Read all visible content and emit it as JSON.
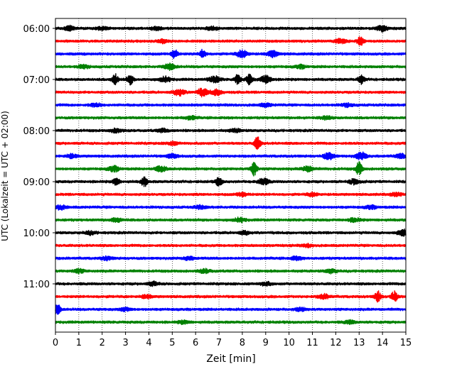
{
  "chart_data": {
    "type": "line",
    "title": "",
    "xlabel": "Zeit  [min]",
    "ylabel": "UTC (Lokalzeit = UTC + 02:00)",
    "xlim": [
      0,
      15
    ],
    "x_ticks": [
      "0",
      "1",
      "2",
      "3",
      "4",
      "5",
      "6",
      "7",
      "8",
      "9",
      "10",
      "11",
      "12",
      "13",
      "14",
      "15"
    ],
    "y_ticks": [
      "06:00",
      "07:00",
      "08:00",
      "09:00",
      "10:00",
      "11:00"
    ],
    "grid": "vertical dotted at each minute",
    "trace_interval_min": 15,
    "first_trace": "06:00",
    "trace_colors": [
      "#000000",
      "#ff0000",
      "#0000ff",
      "#008000"
    ],
    "traces": [
      {
        "start": "06:00",
        "events": [
          {
            "t": 0.6,
            "amp": 0.4
          },
          {
            "t": 2.0,
            "amp": 0.3
          },
          {
            "t": 4.3,
            "amp": 0.35
          },
          {
            "t": 6.7,
            "amp": 0.3
          },
          {
            "t": 14.0,
            "amp": 0.5
          }
        ]
      },
      {
        "start": "06:15",
        "events": [
          {
            "t": 4.6,
            "amp": 0.3
          },
          {
            "t": 12.2,
            "amp": 0.45
          },
          {
            "t": 13.05,
            "amp": 0.8
          }
        ]
      },
      {
        "start": "06:30",
        "events": [
          {
            "t": 5.1,
            "amp": 0.9
          },
          {
            "t": 6.3,
            "amp": 0.8
          },
          {
            "t": 8.0,
            "amp": 0.7
          },
          {
            "t": 9.3,
            "amp": 0.6
          }
        ]
      },
      {
        "start": "06:45",
        "events": [
          {
            "t": 4.9,
            "amp": 0.55
          },
          {
            "t": 1.2,
            "amp": 0.3
          },
          {
            "t": 10.5,
            "amp": 0.3
          }
        ]
      },
      {
        "start": "07:00",
        "events": [
          {
            "t": 2.55,
            "amp": 1.0
          },
          {
            "t": 3.2,
            "amp": 0.9
          },
          {
            "t": 4.7,
            "amp": 0.5
          },
          {
            "t": 6.8,
            "amp": 0.6
          },
          {
            "t": 7.8,
            "amp": 0.9
          },
          {
            "t": 8.3,
            "amp": 0.95
          },
          {
            "t": 9.0,
            "amp": 0.7
          },
          {
            "t": 13.1,
            "amp": 0.8
          }
        ]
      },
      {
        "start": "07:15",
        "events": [
          {
            "t": 5.3,
            "amp": 0.6
          },
          {
            "t": 6.3,
            "amp": 0.7
          },
          {
            "t": 6.9,
            "amp": 0.5
          }
        ]
      },
      {
        "start": "07:30",
        "events": [
          {
            "t": 1.7,
            "amp": 0.3
          },
          {
            "t": 9.0,
            "amp": 0.3
          },
          {
            "t": 12.5,
            "amp": 0.3
          }
        ]
      },
      {
        "start": "07:45",
        "events": [
          {
            "t": 5.8,
            "amp": 0.3
          },
          {
            "t": 11.6,
            "amp": 0.3
          }
        ]
      },
      {
        "start": "08:00",
        "events": [
          {
            "t": 2.6,
            "amp": 0.35
          },
          {
            "t": 4.6,
            "amp": 0.3
          },
          {
            "t": 7.7,
            "amp": 0.3
          }
        ]
      },
      {
        "start": "08:15",
        "events": [
          {
            "t": 8.65,
            "amp": 1.2
          },
          {
            "t": 5.0,
            "amp": 0.3
          }
        ]
      },
      {
        "start": "08:30",
        "events": [
          {
            "t": 0.7,
            "amp": 0.35
          },
          {
            "t": 5.0,
            "amp": 0.35
          },
          {
            "t": 11.7,
            "amp": 0.6
          },
          {
            "t": 13.1,
            "amp": 0.7
          },
          {
            "t": 14.8,
            "amp": 0.4
          }
        ]
      },
      {
        "start": "08:45",
        "events": [
          {
            "t": 2.5,
            "amp": 0.5
          },
          {
            "t": 4.5,
            "amp": 0.5
          },
          {
            "t": 8.5,
            "amp": 1.3
          },
          {
            "t": 10.8,
            "amp": 0.5
          },
          {
            "t": 13.0,
            "amp": 1.3
          }
        ]
      },
      {
        "start": "09:00",
        "events": [
          {
            "t": 2.6,
            "amp": 0.8
          },
          {
            "t": 3.8,
            "amp": 0.9
          },
          {
            "t": 7.0,
            "amp": 0.8
          },
          {
            "t": 8.9,
            "amp": 0.6
          },
          {
            "t": 12.8,
            "amp": 0.5
          }
        ]
      },
      {
        "start": "09:15",
        "events": [
          {
            "t": 8.0,
            "amp": 0.35
          },
          {
            "t": 11.0,
            "amp": 0.3
          },
          {
            "t": 14.6,
            "amp": 0.3
          }
        ]
      },
      {
        "start": "09:30",
        "events": [
          {
            "t": 0.2,
            "amp": 0.4
          },
          {
            "t": 6.2,
            "amp": 0.3
          },
          {
            "t": 13.5,
            "amp": 0.3
          }
        ]
      },
      {
        "start": "09:45",
        "events": [
          {
            "t": 2.6,
            "amp": 0.35
          },
          {
            "t": 7.9,
            "amp": 0.4
          },
          {
            "t": 12.8,
            "amp": 0.35
          }
        ]
      },
      {
        "start": "10:00",
        "events": [
          {
            "t": 1.5,
            "amp": 0.3
          },
          {
            "t": 8.1,
            "amp": 0.3
          },
          {
            "t": 14.9,
            "amp": 0.6
          }
        ]
      },
      {
        "start": "10:15",
        "events": [
          {
            "t": 10.8,
            "amp": 0.25
          }
        ]
      },
      {
        "start": "10:30",
        "events": [
          {
            "t": 2.2,
            "amp": 0.3
          },
          {
            "t": 5.7,
            "amp": 0.3
          },
          {
            "t": 10.3,
            "amp": 0.3
          }
        ]
      },
      {
        "start": "10:45",
        "events": [
          {
            "t": 1.0,
            "amp": 0.35
          },
          {
            "t": 6.4,
            "amp": 0.35
          },
          {
            "t": 11.8,
            "amp": 0.35
          }
        ]
      },
      {
        "start": "11:00",
        "events": [
          {
            "t": 4.2,
            "amp": 0.35
          },
          {
            "t": 9.0,
            "amp": 0.3
          }
        ]
      },
      {
        "start": "11:15",
        "events": [
          {
            "t": 3.9,
            "amp": 0.3
          },
          {
            "t": 11.5,
            "amp": 0.4
          },
          {
            "t": 13.8,
            "amp": 1.0
          },
          {
            "t": 14.5,
            "amp": 1.0
          }
        ]
      },
      {
        "start": "11:30",
        "events": [
          {
            "t": 0.1,
            "amp": 0.9
          },
          {
            "t": 3.0,
            "amp": 0.3
          },
          {
            "t": 10.5,
            "amp": 0.3
          }
        ]
      },
      {
        "start": "11:45",
        "events": [
          {
            "t": 5.5,
            "amp": 0.3
          },
          {
            "t": 12.6,
            "amp": 0.3
          }
        ]
      }
    ]
  }
}
